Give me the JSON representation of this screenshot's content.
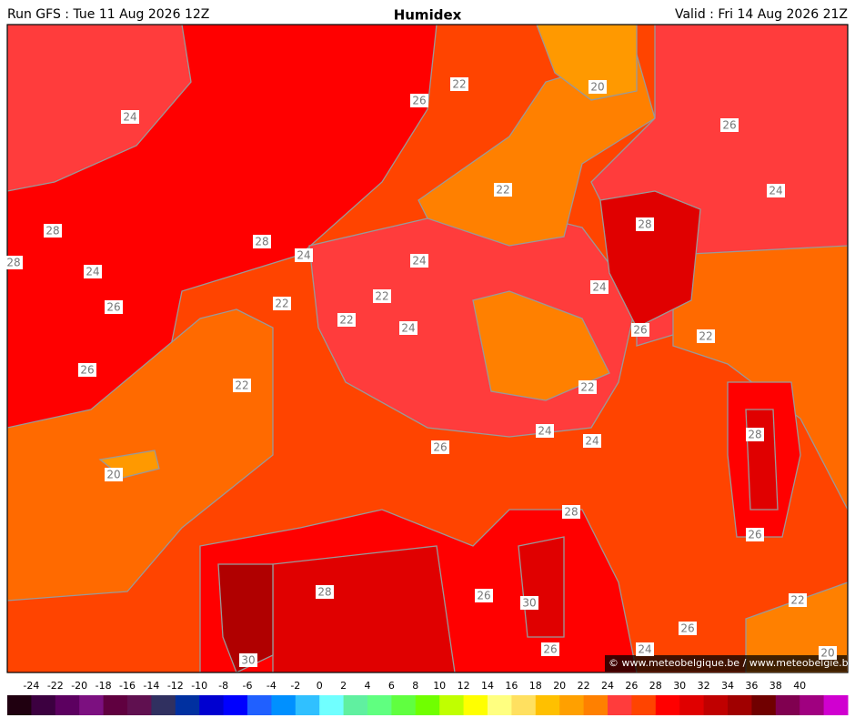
{
  "header": {
    "run": "Run GFS : Tue 11 Aug 2026 12Z",
    "title": "Humidex",
    "valid": "Valid : Fri 14 Aug 2026 21Z"
  },
  "map": {
    "contour_labels": [
      24,
      26,
      22,
      20,
      26,
      24,
      22,
      28,
      28,
      28,
      24,
      28,
      24,
      24,
      22,
      22,
      26,
      24,
      22,
      24,
      26,
      22,
      26,
      22,
      22,
      28,
      24,
      24,
      26,
      20,
      28,
      26,
      28,
      26,
      30,
      22,
      26,
      24,
      26,
      30,
      20
    ],
    "copyright": "© www.meteobelgique.be / www.meteobelgie.be"
  },
  "colorbar": {
    "ticks": [
      -24,
      -22,
      -20,
      -18,
      -16,
      -14,
      -12,
      -10,
      -8,
      -6,
      -4,
      -2,
      0,
      2,
      4,
      6,
      8,
      10,
      12,
      14,
      16,
      18,
      20,
      22,
      24,
      26,
      28,
      30,
      32,
      34,
      36,
      38,
      40
    ],
    "colors": [
      "#200010",
      "#3c0040",
      "#5c0060",
      "#7c1080",
      "#600040",
      "#601050",
      "#303060",
      "#0030a0",
      "#0000d0",
      "#0000ff",
      "#2060ff",
      "#0090ff",
      "#30c0ff",
      "#70ffff",
      "#60f0a0",
      "#60ff80",
      "#60ff40",
      "#70ff00",
      "#c0ff00",
      "#ffff00",
      "#ffff80",
      "#ffe060",
      "#ffc000",
      "#ffa000",
      "#ff8000",
      "#ff3c3c",
      "#ff4400",
      "#ff0000",
      "#e00000",
      "#c00000",
      "#a00000",
      "#700000",
      "#800050",
      "#a00080",
      "#d000d0"
    ]
  }
}
